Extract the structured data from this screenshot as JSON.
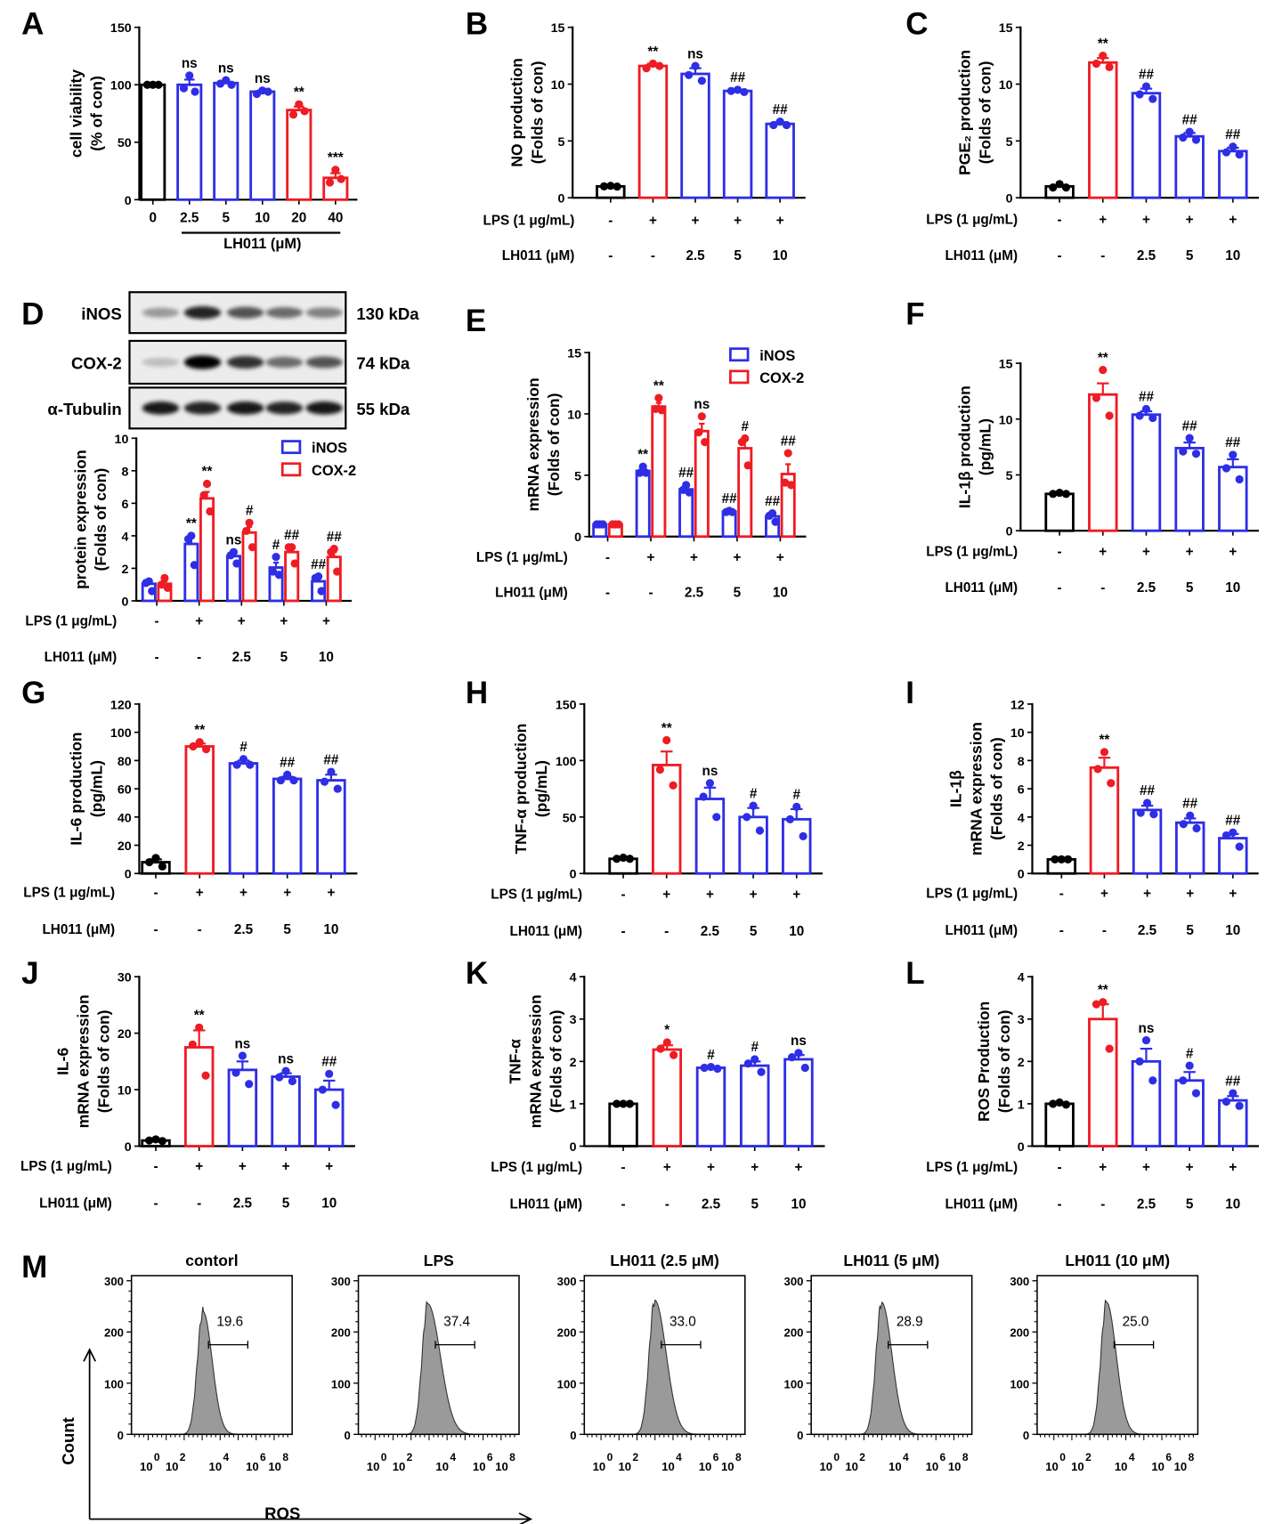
{
  "colors": {
    "k": "#000000",
    "r": "#ee1c24",
    "b": "#2e2ee6",
    "hist_fill": "#9a9a9a"
  },
  "treatments": {
    "lps_label": "LPS (1 μg/mL)",
    "lps": [
      "-",
      "+",
      "+",
      "+",
      "+"
    ],
    "lh_label": "LH011 (μM)",
    "lh": [
      "-",
      "-",
      "2.5",
      "5",
      "10"
    ]
  },
  "chart_data": [
    {
      "panel": "A",
      "type": "bar",
      "ylabel": [
        "cell viability",
        "(% of con)"
      ],
      "ylim": [
        0,
        150
      ],
      "yticks": [
        0,
        50,
        100,
        150
      ],
      "categories": [
        "0",
        "2.5",
        "5",
        "10",
        "20",
        "40"
      ],
      "xlabel": "LH011 (μM)",
      "bars": [
        {
          "value": 100,
          "sem": 0.3,
          "points": [
            100,
            100,
            100
          ],
          "sig": "",
          "color": "k"
        },
        {
          "value": 100,
          "sem": 4.5,
          "points": [
            108,
            97,
            94
          ],
          "sig": "ns",
          "color": "b"
        },
        {
          "value": 101.5,
          "sem": 1,
          "points": [
            104,
            101,
            100
          ],
          "sig": "ns",
          "color": "b"
        },
        {
          "value": 94,
          "sem": 1,
          "points": [
            95,
            92,
            94
          ],
          "sig": "ns",
          "color": "b"
        },
        {
          "value": 78,
          "sem": 3,
          "points": [
            83,
            74,
            77
          ],
          "sig": "**",
          "color": "r"
        },
        {
          "value": 19,
          "sem": 4,
          "points": [
            26,
            15,
            18
          ],
          "sig": "***",
          "color": "r"
        }
      ]
    },
    {
      "panel": "B",
      "type": "bar",
      "ylabel": [
        "NO production",
        "(Folds of con)"
      ],
      "ylim": [
        0,
        15
      ],
      "yticks": [
        0,
        5,
        10,
        15
      ],
      "treatment_rows": true,
      "bars": [
        {
          "value": 1.0,
          "sem": 0.05,
          "points": [
            1.05,
            1.0,
            0.98
          ],
          "sig": "",
          "color": "k"
        },
        {
          "value": 11.6,
          "sem": 0.2,
          "points": [
            11.8,
            11.4,
            11.6
          ],
          "sig": "**",
          "color": "r"
        },
        {
          "value": 10.9,
          "sem": 0.5,
          "points": [
            11.6,
            10.8,
            10.3
          ],
          "sig": "ns",
          "color": "b"
        },
        {
          "value": 9.4,
          "sem": 0.1,
          "points": [
            9.5,
            9.4,
            9.3
          ],
          "sig": "##",
          "color": "b"
        },
        {
          "value": 6.5,
          "sem": 0.15,
          "points": [
            6.7,
            6.4,
            6.4
          ],
          "sig": "##",
          "color": "b"
        }
      ]
    },
    {
      "panel": "C",
      "type": "bar",
      "ylabel": [
        "PGE₂ production",
        "(Folds of con)"
      ],
      "ylim": [
        0,
        15
      ],
      "yticks": [
        0,
        5,
        10,
        15
      ],
      "treatment_rows": true,
      "bars": [
        {
          "value": 1.0,
          "sem": 0.1,
          "points": [
            1.2,
            0.9,
            0.9
          ],
          "sig": "",
          "color": "k"
        },
        {
          "value": 11.9,
          "sem": 0.4,
          "points": [
            12.5,
            11.8,
            11.5
          ],
          "sig": "**",
          "color": "r"
        },
        {
          "value": 9.2,
          "sem": 0.4,
          "points": [
            9.8,
            9.1,
            8.7
          ],
          "sig": "##",
          "color": "b"
        },
        {
          "value": 5.4,
          "sem": 0.3,
          "points": [
            5.8,
            5.3,
            5.1
          ],
          "sig": "##",
          "color": "b"
        },
        {
          "value": 4.1,
          "sem": 0.3,
          "points": [
            4.5,
            4.0,
            3.8
          ],
          "sig": "##",
          "color": "b"
        }
      ]
    },
    {
      "panel": "D",
      "type": "bar",
      "ylabel": [
        "protein expression",
        "(Folds of con)"
      ],
      "ylim": [
        0,
        10
      ],
      "yticks": [
        0,
        2,
        4,
        6,
        8,
        10
      ],
      "treatment_rows": true,
      "blot": [
        {
          "protein": "iNOS",
          "kda": "130 kDa",
          "intensity": [
            0.35,
            0.85,
            0.65,
            0.55,
            0.45
          ]
        },
        {
          "protein": "COX-2",
          "kda": "74 kDa",
          "intensity": [
            0.2,
            1.0,
            0.8,
            0.55,
            0.65
          ]
        },
        {
          "protein": "α-Tubulin",
          "kda": "55 kDa",
          "intensity": [
            0.9,
            0.85,
            0.9,
            0.85,
            0.9
          ]
        }
      ],
      "series": [
        {
          "name": "iNOS",
          "color": "b",
          "values": [
            1.05,
            3.5,
            2.75,
            2.05,
            1.2
          ],
          "sem": [
            0.15,
            0.5,
            0.2,
            0.3,
            0.25
          ],
          "points": [
            [
              1.2,
              1.1,
              0.6
            ],
            [
              4.0,
              3.8,
              2.2
            ],
            [
              3.0,
              2.8,
              2.3
            ],
            [
              2.7,
              1.8,
              1.6
            ],
            [
              1.5,
              1.4,
              0.6
            ]
          ],
          "sig": [
            "",
            "**",
            "ns",
            "#",
            "##"
          ]
        },
        {
          "name": "COX-2",
          "color": "r",
          "values": [
            1.05,
            6.3,
            4.2,
            3.0,
            2.7
          ],
          "sem": [
            0.15,
            0.4,
            0.35,
            0.2,
            0.3
          ],
          "points": [
            [
              1.4,
              1.0,
              0.8
            ],
            [
              7.2,
              6.5,
              5.5
            ],
            [
              4.8,
              4.3,
              3.3
            ],
            [
              3.3,
              3.3,
              2.3
            ],
            [
              3.2,
              3.0,
              1.8
            ]
          ],
          "sig": [
            "",
            "**",
            "#",
            "##",
            "##"
          ]
        }
      ]
    },
    {
      "panel": "E",
      "type": "bar",
      "ylabel": [
        "mRNA expression",
        "(Folds of con)"
      ],
      "ylim": [
        0,
        15
      ],
      "yticks": [
        0,
        5,
        10,
        15
      ],
      "treatment_rows": true,
      "series": [
        {
          "name": "iNOS",
          "color": "b",
          "values": [
            1.0,
            5.35,
            3.85,
            2.05,
            1.65
          ],
          "sem": [
            0.05,
            0.2,
            0.2,
            0.05,
            0.2
          ],
          "points": [
            [
              1.0,
              1.0,
              1.0
            ],
            [
              5.7,
              5.2,
              5.2
            ],
            [
              4.2,
              3.8,
              3.6
            ],
            [
              2.1,
              2.0,
              2.0
            ],
            [
              1.9,
              1.7,
              1.2
            ]
          ],
          "sig": [
            "",
            "**",
            "##",
            "##",
            "##"
          ]
        },
        {
          "name": "COX-2",
          "color": "r",
          "values": [
            1.0,
            10.6,
            8.6,
            7.2,
            5.1
          ],
          "sem": [
            0.05,
            0.3,
            0.6,
            0.7,
            0.8
          ],
          "points": [
            [
              1.0,
              1.0,
              1.0
            ],
            [
              11.3,
              10.4,
              10.3
            ],
            [
              9.8,
              8.5,
              7.7
            ],
            [
              8.0,
              7.7,
              5.8
            ],
            [
              6.8,
              4.4,
              4.2
            ]
          ],
          "sig": [
            "",
            "**",
            "ns",
            "#",
            "##"
          ]
        }
      ]
    },
    {
      "panel": "F",
      "type": "bar",
      "ylabel": [
        "IL-1β production",
        "(pg/mL)"
      ],
      "ylim": [
        0,
        15
      ],
      "yticks": [
        0,
        5,
        10,
        15
      ],
      "treatment_rows": true,
      "bars": [
        {
          "value": 3.3,
          "sem": 0.05,
          "points": [
            3.4,
            3.3,
            3.3
          ],
          "sig": "",
          "color": "k"
        },
        {
          "value": 12.2,
          "sem": 1.0,
          "points": [
            14.4,
            11.9,
            10.3
          ],
          "sig": "**",
          "color": "r"
        },
        {
          "value": 10.4,
          "sem": 0.3,
          "points": [
            10.9,
            10.3,
            10.1
          ],
          "sig": "##",
          "color": "b"
        },
        {
          "value": 7.4,
          "sem": 0.5,
          "points": [
            8.3,
            7.1,
            6.9
          ],
          "sig": "##",
          "color": "b"
        },
        {
          "value": 5.7,
          "sem": 0.7,
          "points": [
            6.8,
            5.6,
            4.6
          ],
          "sig": "##",
          "color": "b"
        }
      ]
    },
    {
      "panel": "G",
      "type": "bar",
      "ylabel": [
        "IL-6 production",
        "(pg/mL)"
      ],
      "ylim": [
        0,
        120
      ],
      "yticks": [
        0,
        20,
        40,
        60,
        80,
        100,
        120
      ],
      "treatment_rows": true,
      "bars": [
        {
          "value": 8,
          "sem": 2,
          "points": [
            11,
            8,
            5
          ],
          "sig": "",
          "color": "k"
        },
        {
          "value": 90,
          "sem": 2,
          "points": [
            93,
            90,
            88
          ],
          "sig": "**",
          "color": "r"
        },
        {
          "value": 78,
          "sem": 2,
          "points": [
            81,
            77,
            77
          ],
          "sig": "#",
          "color": "b"
        },
        {
          "value": 67,
          "sem": 1.5,
          "points": [
            70,
            66,
            66
          ],
          "sig": "##",
          "color": "b"
        },
        {
          "value": 66,
          "sem": 4,
          "points": [
            72,
            65,
            60
          ],
          "sig": "##",
          "color": "b"
        }
      ]
    },
    {
      "panel": "H",
      "type": "bar",
      "ylabel": [
        "TNF-α production",
        "(pg/mL)"
      ],
      "ylim": [
        0,
        150
      ],
      "yticks": [
        0,
        50,
        100,
        150
      ],
      "treatment_rows": true,
      "bars": [
        {
          "value": 13,
          "sem": 1,
          "points": [
            14,
            13,
            13
          ],
          "sig": "",
          "color": "k"
        },
        {
          "value": 96,
          "sem": 12,
          "points": [
            118,
            92,
            78
          ],
          "sig": "**",
          "color": "r"
        },
        {
          "value": 66,
          "sem": 10,
          "points": [
            80,
            68,
            50
          ],
          "sig": "ns",
          "color": "b"
        },
        {
          "value": 50,
          "sem": 8,
          "points": [
            60,
            50,
            38
          ],
          "sig": "#",
          "color": "b"
        },
        {
          "value": 48,
          "sem": 9,
          "points": [
            59,
            48,
            33
          ],
          "sig": "#",
          "color": "b"
        }
      ]
    },
    {
      "panel": "I",
      "type": "bar",
      "ylabel": [
        "IL-1β",
        "mRNA expression",
        "(Folds of con)"
      ],
      "ylim": [
        0,
        12
      ],
      "yticks": [
        0,
        2,
        4,
        6,
        8,
        10,
        12
      ],
      "treatment_rows": true,
      "bars": [
        {
          "value": 1.0,
          "sem": 0.05,
          "points": [
            1.0,
            1.0,
            1.0
          ],
          "sig": "",
          "color": "k"
        },
        {
          "value": 7.5,
          "sem": 0.7,
          "points": [
            8.6,
            7.4,
            6.4
          ],
          "sig": "**",
          "color": "r"
        },
        {
          "value": 4.5,
          "sem": 0.3,
          "points": [
            5.0,
            4.3,
            4.2
          ],
          "sig": "##",
          "color": "b"
        },
        {
          "value": 3.6,
          "sem": 0.3,
          "points": [
            4.1,
            3.5,
            3.2
          ],
          "sig": "##",
          "color": "b"
        },
        {
          "value": 2.5,
          "sem": 0.3,
          "points": [
            2.9,
            2.7,
            1.9
          ],
          "sig": "##",
          "color": "b"
        }
      ]
    },
    {
      "panel": "J",
      "type": "bar",
      "ylabel": [
        "IL-6",
        "mRNA expression",
        "(Folds of con)"
      ],
      "ylim": [
        0,
        30
      ],
      "yticks": [
        0,
        10,
        20,
        30
      ],
      "treatment_rows": true,
      "bars": [
        {
          "value": 1.0,
          "sem": 0.1,
          "points": [
            1.2,
            1.0,
            0.9
          ],
          "sig": "",
          "color": "k"
        },
        {
          "value": 17.5,
          "sem": 3,
          "points": [
            21,
            18,
            12.5
          ],
          "sig": "**",
          "color": "r"
        },
        {
          "value": 13.5,
          "sem": 1.5,
          "points": [
            16,
            13,
            11
          ],
          "sig": "ns",
          "color": "b"
        },
        {
          "value": 12.3,
          "sem": 0.6,
          "points": [
            13.3,
            12.2,
            11.5
          ],
          "sig": "ns",
          "color": "b"
        },
        {
          "value": 10.0,
          "sem": 1.6,
          "points": [
            12.8,
            10,
            7.3
          ],
          "sig": "##",
          "color": "b"
        }
      ]
    },
    {
      "panel": "K",
      "type": "bar",
      "ylabel": [
        "TNF-α",
        "mRNA expression",
        "(Folds of con)"
      ],
      "ylim": [
        0,
        4
      ],
      "yticks": [
        0,
        1,
        2,
        3,
        4
      ],
      "treatment_rows": true,
      "bars": [
        {
          "value": 1.0,
          "sem": 0.01,
          "points": [
            1.0,
            1.0,
            1.0
          ],
          "sig": "",
          "color": "k"
        },
        {
          "value": 2.28,
          "sem": 0.1,
          "points": [
            2.45,
            2.3,
            2.15
          ],
          "sig": "*",
          "color": "r"
        },
        {
          "value": 1.85,
          "sem": 0.02,
          "points": [
            1.87,
            1.85,
            1.83
          ],
          "sig": "#",
          "color": "b"
        },
        {
          "value": 1.9,
          "sem": 0.1,
          "points": [
            2.05,
            1.95,
            1.75
          ],
          "sig": "#",
          "color": "b"
        },
        {
          "value": 2.05,
          "sem": 0.1,
          "points": [
            2.2,
            2.1,
            1.85
          ],
          "sig": "ns",
          "color": "b"
        }
      ]
    },
    {
      "panel": "L",
      "type": "bar",
      "ylabel": [
        "ROS Production",
        "(Folds of con)"
      ],
      "ylim": [
        0,
        4
      ],
      "yticks": [
        0,
        1,
        2,
        3,
        4
      ],
      "treatment_rows": true,
      "bars": [
        {
          "value": 1.0,
          "sem": 0.02,
          "points": [
            1.03,
            1.0,
            0.98
          ],
          "sig": "",
          "color": "k"
        },
        {
          "value": 3.0,
          "sem": 0.35,
          "points": [
            3.4,
            3.35,
            2.3
          ],
          "sig": "**",
          "color": "r"
        },
        {
          "value": 2.0,
          "sem": 0.3,
          "points": [
            2.5,
            2.0,
            1.55
          ],
          "sig": "ns",
          "color": "b"
        },
        {
          "value": 1.55,
          "sem": 0.2,
          "points": [
            1.9,
            1.55,
            1.25
          ],
          "sig": "#",
          "color": "b"
        },
        {
          "value": 1.08,
          "sem": 0.1,
          "points": [
            1.25,
            1.05,
            0.95
          ],
          "sig": "##",
          "color": "b"
        }
      ]
    },
    {
      "panel": "M",
      "type": "histogram",
      "ylabel": "Count",
      "xlabel": "ROS",
      "ylim": [
        0,
        300
      ],
      "yticks": [
        0,
        100,
        200,
        300
      ],
      "xtick_base": "10",
      "xtick_exps": [
        "0",
        "2",
        "4",
        "6",
        "8"
      ],
      "plots": [
        {
          "title": "contorl",
          "gate_value": "19.6",
          "mode_log": 3.3,
          "peak_count": 240,
          "right_spread": 0.08
        },
        {
          "title": "LPS",
          "gate_value": "37.4",
          "mode_log": 3.2,
          "peak_count": 255,
          "right_spread": 0.11
        },
        {
          "title": "LH011 (2.5 μM)",
          "gate_value": "33.0",
          "mode_log": 3.25,
          "peak_count": 262,
          "right_spread": 0.1
        },
        {
          "title": "LH011 (5 μM)",
          "gate_value": "28.9",
          "mode_log": 3.25,
          "peak_count": 258,
          "right_spread": 0.09
        },
        {
          "title": "LH011 (10 μM)",
          "gate_value": "25.0",
          "mode_log": 3.2,
          "peak_count": 258,
          "right_spread": 0.085
        }
      ]
    }
  ]
}
